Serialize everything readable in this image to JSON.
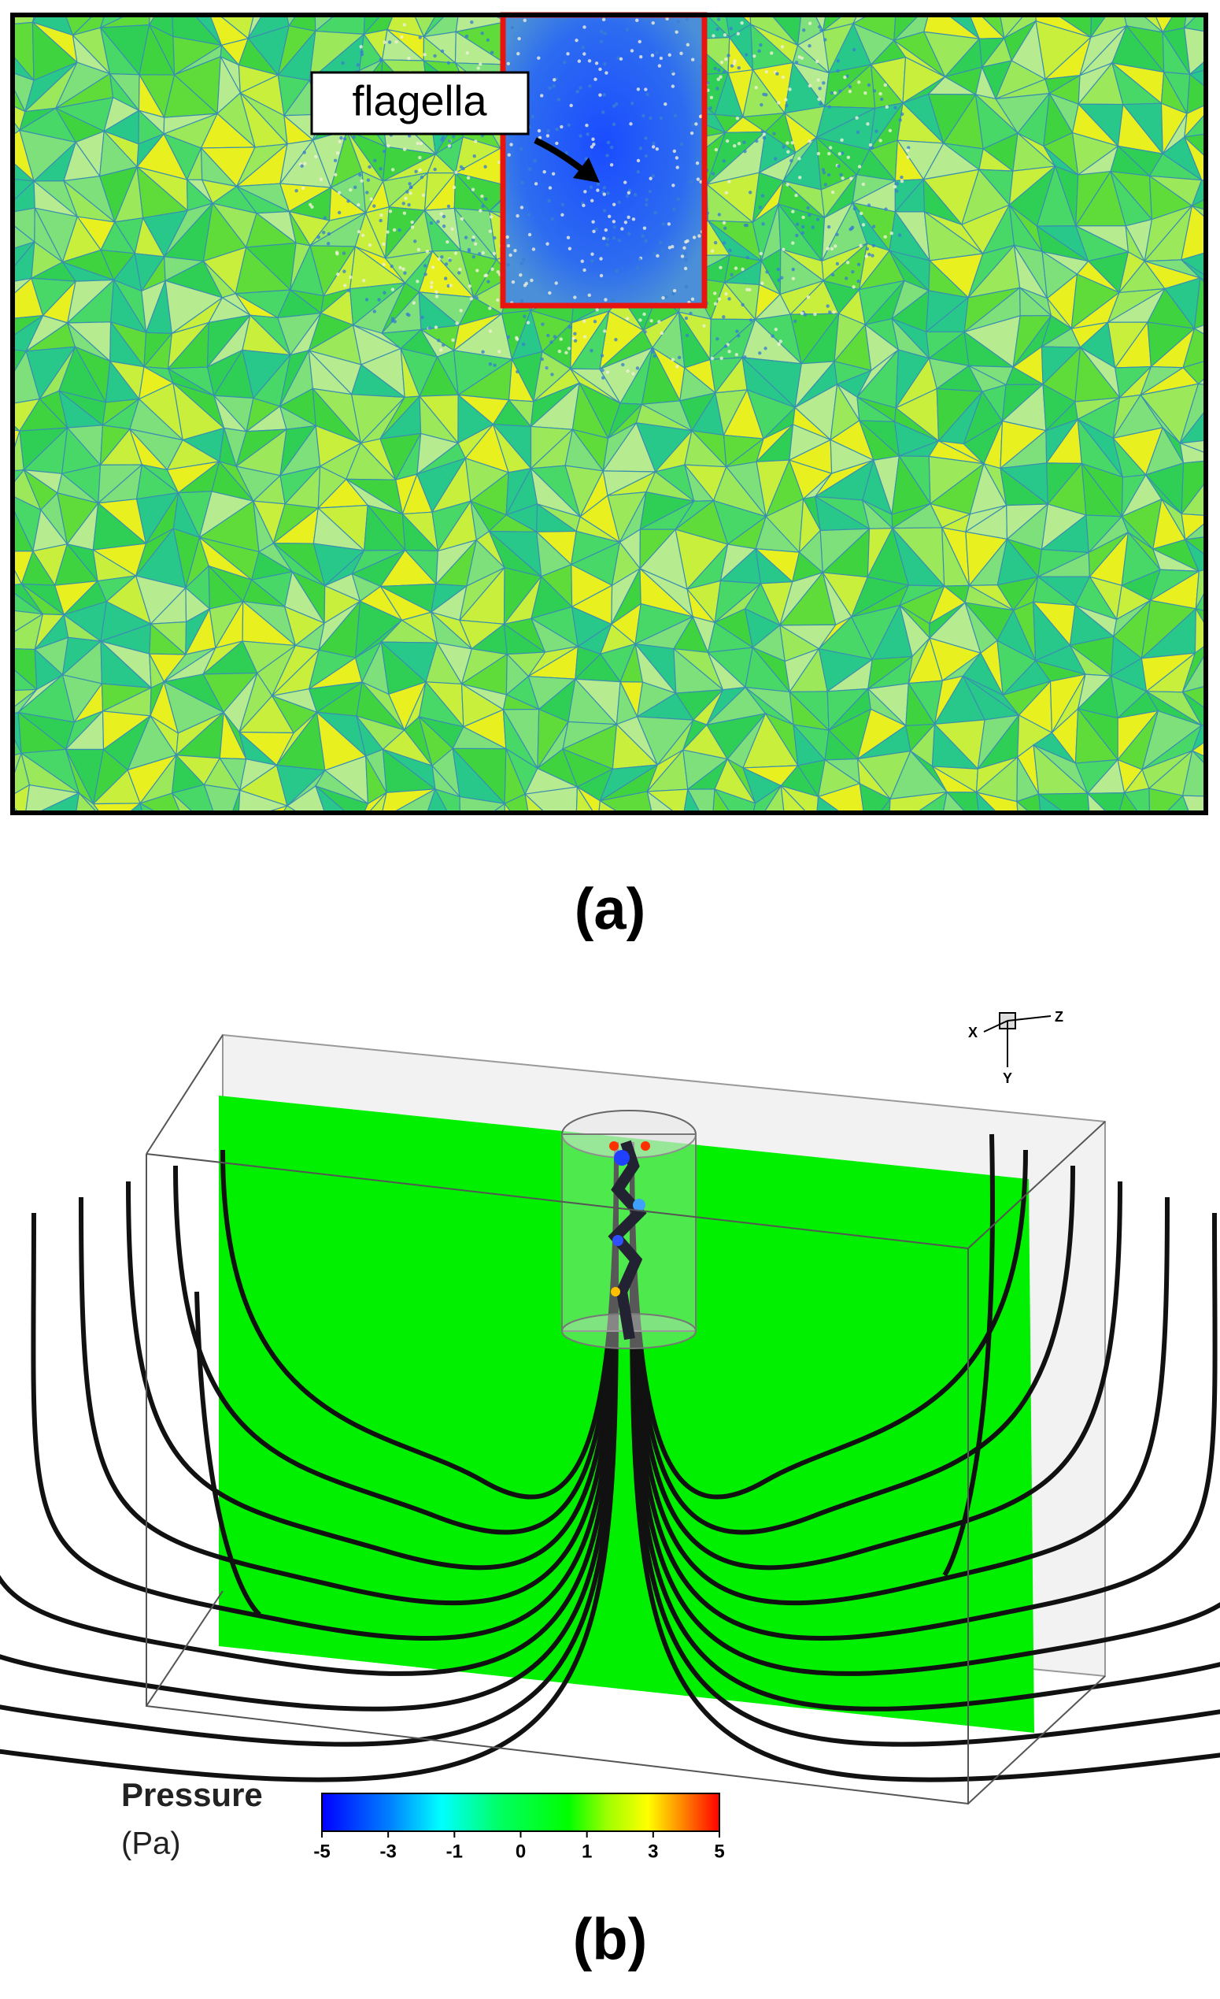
{
  "panel_a": {
    "label": "(a)",
    "annotation": "flagella"
  },
  "panel_b": {
    "label": "(b)",
    "colorbar": {
      "title": "Pressure",
      "unit": "(Pa)",
      "ticks": [
        -5,
        -3,
        -1,
        0,
        1,
        3,
        5
      ]
    },
    "axes": {
      "x": "X",
      "y": "Y",
      "z": "Z"
    }
  }
}
